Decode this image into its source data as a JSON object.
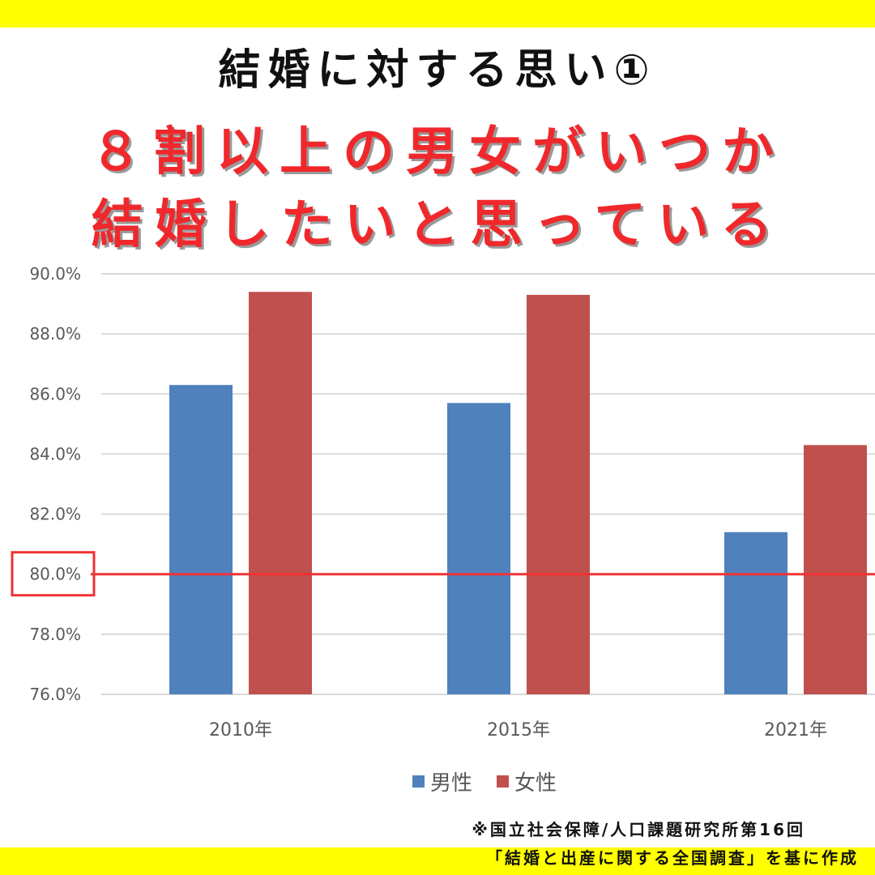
{
  "title": "結婚に対する思い①",
  "headline": {
    "line1": "８割以上の男女がいつか",
    "line2": "結婚したいと思っている"
  },
  "colors": {
    "male": "#4f81bd",
    "female": "#c0504d",
    "highlight": "#f03236",
    "banner": "#ffff00",
    "grid": "#d9d9d9"
  },
  "chart_data": {
    "type": "bar",
    "categories": [
      "2010年",
      "2015年",
      "2021年"
    ],
    "series": [
      {
        "name": "男性",
        "values": [
          86.3,
          85.7,
          81.4
        ]
      },
      {
        "name": "女性",
        "values": [
          89.4,
          89.3,
          84.3
        ]
      }
    ],
    "ylim": [
      76.0,
      90.0
    ],
    "yticks": [
      76.0,
      78.0,
      80.0,
      82.0,
      84.0,
      86.0,
      88.0,
      90.0
    ],
    "ytick_labels": [
      "76.0%",
      "78.0%",
      "80.0%",
      "82.0%",
      "84.0%",
      "86.0%",
      "88.0%",
      "90.0%"
    ],
    "grid": true,
    "legend_position": "bottom",
    "reference_line": {
      "value": 80.0,
      "label": "80.0%"
    }
  },
  "source_note": {
    "line1": "※国立社会保障/人口課題研究所第16回",
    "line2": "「結婚と出産に関する全国調査」を基に作成"
  }
}
